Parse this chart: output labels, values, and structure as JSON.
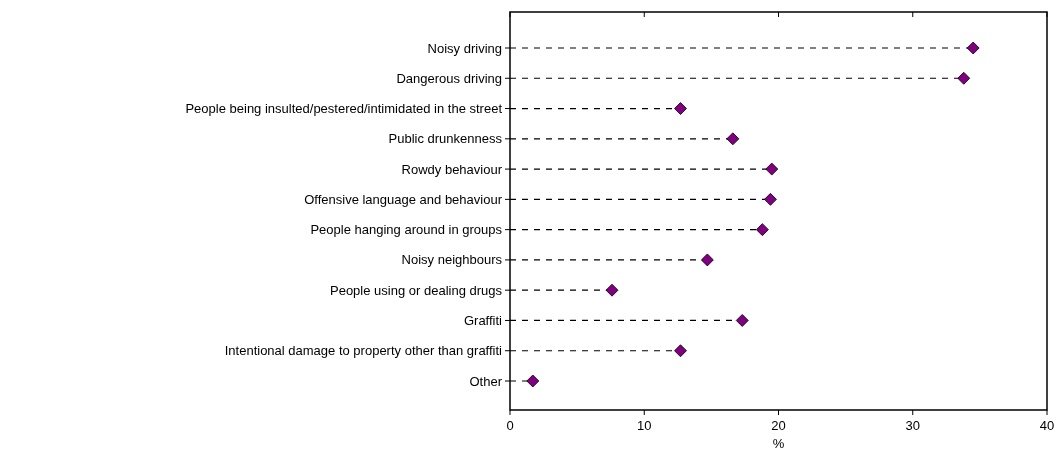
{
  "chart_data": {
    "type": "lollipop",
    "orientation": "horizontal",
    "xlabel": "%",
    "categories": [
      "Noisy driving",
      "Dangerous driving",
      "People being insulted/pestered/intimidated in the street",
      "Public drunkenness",
      "Rowdy behaviour",
      "Offensive language and behaviour",
      "People hanging around in groups",
      "Noisy neighbours",
      "People using or dealing drugs",
      "Graffiti",
      "Intentional damage to property other than graffiti",
      "Other"
    ],
    "values": [
      34.5,
      33.8,
      12.7,
      16.6,
      19.5,
      19.4,
      18.8,
      14.7,
      7.6,
      17.3,
      12.7,
      1.7
    ],
    "color": "#800080",
    "marker": "diamond",
    "line_style": "dashed",
    "xlim": [
      0,
      40
    ],
    "xticks": [
      0,
      10,
      20,
      30,
      40
    ]
  }
}
